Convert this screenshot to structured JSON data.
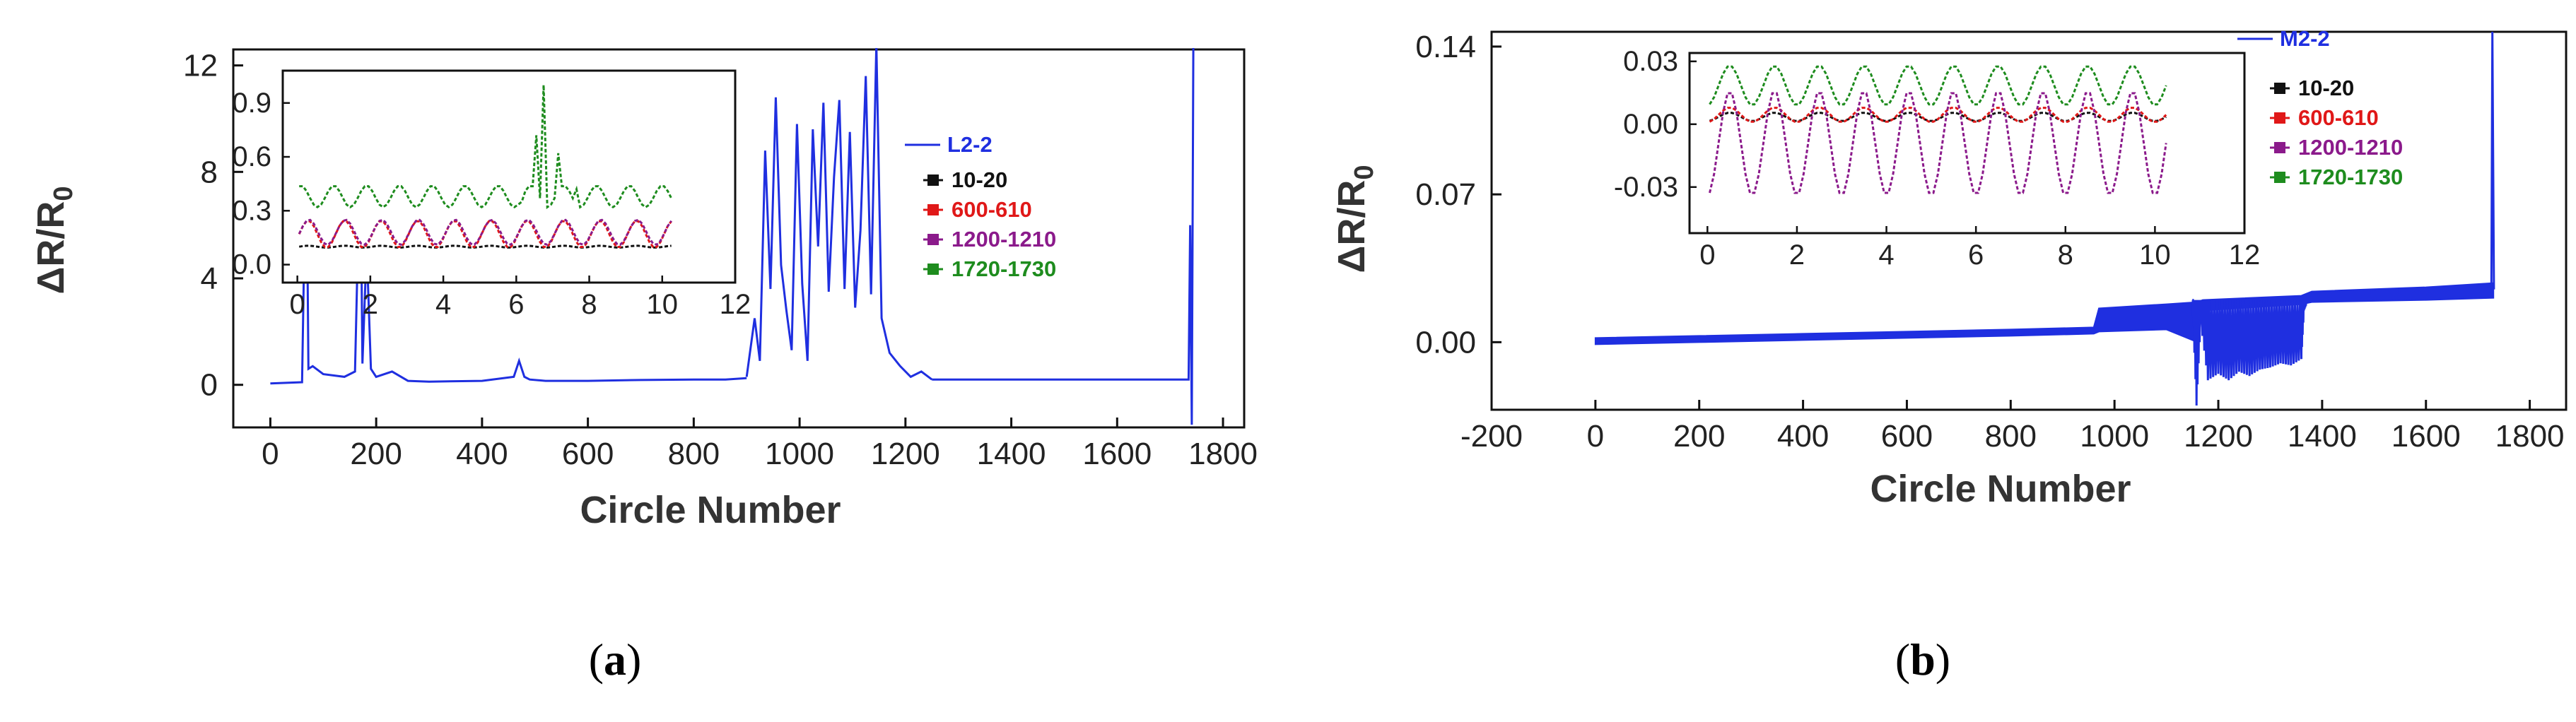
{
  "chart_data": [
    {
      "type": "line",
      "panel_label": "a",
      "xlabel": "Circle Number",
      "ylabel_main": "ΔR/R",
      "ylabel_sub": "0",
      "xlim": [
        -70,
        1840
      ],
      "ylim": [
        -1.6,
        12.6
      ],
      "xticks": [
        0,
        200,
        400,
        600,
        800,
        1000,
        1200,
        1400,
        1600,
        1800
      ],
      "yticks": [
        0,
        4,
        8,
        12
      ],
      "series": [
        {
          "name": "L2-2",
          "color": "#1f2fe0",
          "segments": [
            {
              "x": [
                0,
                60,
                68,
                72,
                80,
                100,
                140,
                160,
                170,
                174,
                182,
                190,
                200,
                230,
                260,
                300,
                400,
                460,
                470,
                480,
                490,
                520,
                600,
                700,
                800,
                860,
                900
              ],
              "y": [
                0.05,
                0.1,
                9.8,
                0.6,
                0.7,
                0.4,
                0.3,
                0.5,
                9.2,
                0.8,
                5.2,
                0.6,
                0.3,
                0.5,
                0.15,
                0.12,
                0.15,
                0.3,
                0.9,
                0.3,
                0.2,
                0.15,
                0.15,
                0.18,
                0.2,
                0.2,
                0.25
              ]
            },
            {
              "x": [
                900,
                915,
                925,
                935,
                945,
                955,
                965,
                975,
                985,
                995,
                1005,
                1015,
                1025,
                1035,
                1045,
                1055,
                1065,
                1075,
                1085,
                1095,
                1105,
                1115,
                1125,
                1135,
                1145,
                1155,
                1170,
                1190,
                1210,
                1230,
                1250
              ],
              "y": [
                0.3,
                2.5,
                0.9,
                8.8,
                3.6,
                10.8,
                4.5,
                2.8,
                1.3,
                9.8,
                3.8,
                0.9,
                9.6,
                5.2,
                10.6,
                3.5,
                7.8,
                10.7,
                3.6,
                9.5,
                2.9,
                5.8,
                11.6,
                3.4,
                12.8,
                2.5,
                1.2,
                0.7,
                0.3,
                0.5,
                0.2
              ]
            },
            {
              "x": [
                1250,
                1300,
                1400,
                1500,
                1600,
                1700,
                1735,
                1738,
                1741,
                1744
              ],
              "y": [
                0.2,
                0.2,
                0.2,
                0.2,
                0.2,
                0.2,
                0.2,
                6.0,
                -1.5,
                12.8
              ]
            }
          ]
        }
      ],
      "inset": {
        "xlim": [
          -0.4,
          12
        ],
        "ylim": [
          -0.1,
          1.08
        ],
        "xticks": [
          0,
          2,
          4,
          6,
          8,
          10,
          12
        ],
        "yticks": [
          0.0,
          0.3,
          0.6,
          0.9
        ],
        "ytick_labels": [
          "0.0",
          "0.3",
          "0.6",
          "0.9"
        ],
        "series": [
          {
            "name": "10-20",
            "color": "#111111",
            "marker": "square",
            "base": 0.1,
            "amp": 0.005,
            "period": 1.0,
            "phase": 0.3
          },
          {
            "name": "600-610",
            "color": "#e01818",
            "marker": "square",
            "base": 0.17,
            "amp": 0.075,
            "period": 1.0,
            "phase": 0.3
          },
          {
            "name": "1200-1210",
            "color": "#8b1a8b",
            "marker": "square",
            "base": 0.18,
            "amp": 0.07,
            "period": 1.0,
            "phase": 0.32
          },
          {
            "name": "1720-1730",
            "color": "#1e8c1e",
            "marker": "square",
            "base": 0.38,
            "amp": 0.06,
            "period": 0.9,
            "phase": 0.1,
            "spike": {
              "x": [
                6.1,
                6.5,
                6.7,
                7.1,
                7.6
              ],
              "y": [
                0.35,
                0.72,
                1.0,
                0.62,
                0.42
              ]
            }
          }
        ]
      }
    },
    {
      "type": "line",
      "panel_label": "b",
      "xlabel": "Circle Number",
      "ylabel_main": "ΔR/R",
      "ylabel_sub": "0",
      "xlim": [
        -200,
        1870
      ],
      "ylim": [
        -0.032,
        0.147
      ],
      "xticks": [
        -200,
        0,
        200,
        400,
        600,
        800,
        1000,
        1200,
        1400,
        1600,
        1800
      ],
      "yticks": [
        0.0,
        0.07,
        0.14
      ],
      "ytick_labels": [
        "0.00",
        "0.07",
        "0.14"
      ],
      "series": [
        {
          "name": "M2-2",
          "color": "#1f2fe0",
          "band": {
            "x": [
              0,
              200,
              400,
              600,
              800,
              960,
              970,
              1100,
              1160,
              1170,
              1360,
              1380,
              1600,
              1730
            ],
            "lo": [
              -0.001,
              0.0,
              0.001,
              0.002,
              0.003,
              0.004,
              0.005,
              0.006,
              0.0,
              0.015,
              0.018,
              0.019,
              0.02,
              0.021
            ],
            "hi": [
              0.002,
              0.003,
              0.004,
              0.005,
              0.006,
              0.007,
              0.016,
              0.018,
              0.019,
              0.02,
              0.022,
              0.024,
              0.026,
              0.028
            ]
          },
          "dips": {
            "x": [
              1150,
              1158,
              1166,
              1180,
              1200,
              1220,
              1240,
              1260,
              1280,
              1300,
              1320,
              1340,
              1360,
              1365,
              1370
            ],
            "y": [
              0.02,
              -0.03,
              0.01,
              -0.018,
              -0.015,
              -0.018,
              -0.014,
              -0.016,
              -0.013,
              -0.012,
              -0.01,
              -0.011,
              -0.008,
              0.015,
              0.018
            ]
          },
          "spike": {
            "x": [
              1726,
              1728,
              1731
            ],
            "y": [
              0.025,
              0.147,
              0.025
            ]
          }
        }
      ],
      "inset": {
        "xlim": [
          -0.4,
          12
        ],
        "ylim": [
          -0.052,
          0.034
        ],
        "xticks": [
          0,
          2,
          4,
          6,
          8,
          10,
          12
        ],
        "yticks": [
          0.03,
          0.0,
          -0.03
        ],
        "ytick_labels": [
          "0.03",
          "0.00",
          "-0.03"
        ],
        "series": [
          {
            "name": "10-20",
            "color": "#111111",
            "marker": "square",
            "base": 0.0035,
            "amp": 0.002,
            "period": 1.0,
            "phase": 0.5
          },
          {
            "name": "600-610",
            "color": "#e01818",
            "marker": "square",
            "base": 0.0045,
            "amp": 0.0035,
            "period": 1.0,
            "phase": 0.5
          },
          {
            "name": "1200-1210",
            "color": "#8b1a8b",
            "marker": "square",
            "base": -0.009,
            "amp": 0.025,
            "period": 1.0,
            "phase": 0.5
          },
          {
            "name": "1720-1730",
            "color": "#1e8c1e",
            "marker": "square",
            "base": 0.0185,
            "amp": 0.0095,
            "period": 1.0,
            "phase": 0.5
          }
        ]
      }
    }
  ]
}
